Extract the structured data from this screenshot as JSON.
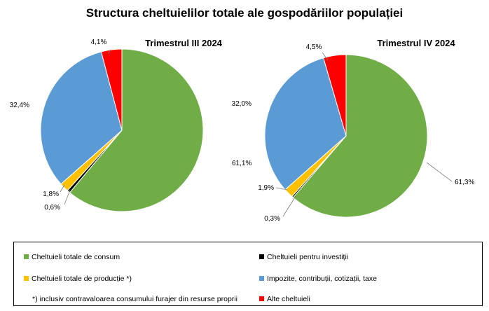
{
  "title": "Structura cheltuielilor totale ale gospodăriilor populației",
  "colors": {
    "consum": "#70ad47",
    "investitii": "#000000",
    "productie": "#ffc000",
    "impozite": "#5b9bd5",
    "alte": "#ff0000"
  },
  "chart_data": [
    {
      "type": "pie",
      "title": "Trimestrul  III 2024",
      "categories": [
        "Cheltuieli totale de consum",
        "Cheltuieli pentru investiții",
        "Cheltuieli totale de producție *)",
        "Impozite, contribuții, cotizații, taxe",
        "Alte cheltuieli"
      ],
      "values": [
        61.1,
        0.6,
        1.8,
        32.4,
        4.1
      ],
      "labels": [
        "61,1%",
        "0,6%",
        "1,8%",
        "32,4%",
        "4,1%"
      ]
    },
    {
      "type": "pie",
      "title": "Trimestrul  IV 2024",
      "categories": [
        "Cheltuieli totale de consum",
        "Cheltuieli pentru investiții",
        "Cheltuieli totale de producție *)",
        "Impozite, contribuții, cotizații, taxe",
        "Alte cheltuieli"
      ],
      "values": [
        61.3,
        0.3,
        1.9,
        32.0,
        4.5
      ],
      "labels": [
        "61,3%",
        "0,3%",
        "1,9%",
        "32,0%",
        "4,5%"
      ]
    }
  ],
  "legend": {
    "items": [
      {
        "label": "Cheltuieli totale de consum",
        "color_key": "consum"
      },
      {
        "label": "Cheltuieli pentru investiții",
        "color_key": "investitii"
      },
      {
        "label": "Cheltuieli totale de producție *)",
        "color_key": "productie"
      },
      {
        "label": "Impozite, contribuții, cotizații, taxe",
        "color_key": "impozite"
      },
      {
        "label": "Alte cheltuieli",
        "color_key": "alte"
      }
    ],
    "footnote": "*) inclusiv contravaloarea consumului furajer din resurse proprii"
  }
}
